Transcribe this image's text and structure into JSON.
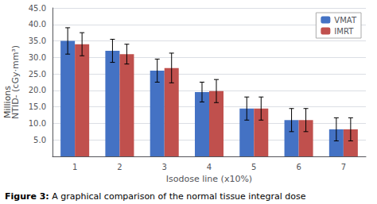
{
  "chart_data": {
    "type": "bar",
    "categories": [
      "1",
      "2",
      "3",
      "4",
      "5",
      "6",
      "7"
    ],
    "xlabel": "Isodose line (x10%)",
    "ylabel": "NTID- (cGy·mm³)",
    "annotations": [
      "Millions",
      "Figure 3:",
      "A graphical comparison of the normal tissue integral dose"
    ],
    "series": [
      {
        "name": "VMAT",
        "color": "#4472C4",
        "values": [
          35.0,
          32.0,
          26.0,
          19.5,
          14.5,
          11.0,
          8.2
        ],
        "errors": [
          4.0,
          3.5,
          3.5,
          3.0,
          3.5,
          3.5,
          3.5
        ]
      },
      {
        "name": "IMRT",
        "color": "#C0504D",
        "values": [
          34.0,
          31.0,
          26.8,
          19.8,
          14.5,
          11.0,
          8.2
        ],
        "errors": [
          3.5,
          3.0,
          4.5,
          3.5,
          3.5,
          3.5,
          3.5
        ]
      }
    ],
    "ylim": [
      0,
      45.0
    ],
    "yticks": [
      {
        "value": 5.0,
        "label": "5.0"
      },
      {
        "value": 10.0,
        "label": "10.0"
      },
      {
        "value": 15.0,
        "label": "15.0"
      },
      {
        "value": 20.0,
        "label": "20.0"
      },
      {
        "value": 25.0,
        "label": "25.0"
      },
      {
        "value": 30.0,
        "label": "30.0"
      },
      {
        "value": 35.0,
        "label": "35.0"
      },
      {
        "value": 40.0,
        "label": "40.0"
      },
      {
        "value": 45.0,
        "label": "45.0"
      }
    ],
    "grid": true,
    "legend": "upper right"
  }
}
